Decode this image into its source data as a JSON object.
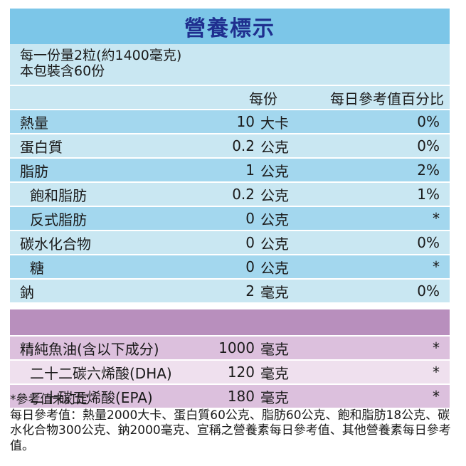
{
  "title": "營養標示",
  "serving": {
    "line1": "每一份量2粒(約1400毫克)",
    "line2": "本包裝含60份"
  },
  "headers": {
    "per_serving": "每份",
    "daily_value": "每日參考值百分比"
  },
  "nutrients": [
    {
      "name": "熱量",
      "amount": "10",
      "unit": "大卡",
      "dv": "0%"
    },
    {
      "name": "蛋白質",
      "amount": "0.2",
      "unit": "公克",
      "dv": "0%"
    },
    {
      "name": "脂肪",
      "amount": "1",
      "unit": "公克",
      "dv": "2%"
    },
    {
      "name": "飽和脂肪",
      "amount": "0.2",
      "unit": "公克",
      "dv": "1%"
    },
    {
      "name": "反式脂肪",
      "amount": "0",
      "unit": "公克",
      "dv": "*"
    },
    {
      "name": "碳水化合物",
      "amount": "0",
      "unit": "公克",
      "dv": "0%"
    },
    {
      "name": "糖",
      "amount": "0",
      "unit": "公克",
      "dv": "*"
    },
    {
      "name": "鈉",
      "amount": "2",
      "unit": "毫克",
      "dv": "0%"
    }
  ],
  "ingredients": [
    {
      "name": "精純魚油(含以下成分)",
      "amount": "1000",
      "unit": "毫克",
      "dv": "*"
    },
    {
      "name": "二十二碳六烯酸(DHA)",
      "amount": "120",
      "unit": "毫克",
      "dv": "*"
    },
    {
      "name": "二十碳五烯酸(EPA)",
      "amount": "180",
      "unit": "毫克",
      "dv": "*"
    }
  ],
  "notes": {
    "line1": "*參考值未訂定",
    "line2": "每日參考值：熱量2000大卡、蛋白質60公克、脂肪60公克、飽和脂肪18公克、碳水化合物300公克、鈉2000毫克、宣稱之營養素每日參考值、其他營養素每日參考值。"
  },
  "colors": {
    "title_bg": "#7cc6e8",
    "title_text": "#1f2f8f",
    "row_blue_dark": "#a3d7ee",
    "row_blue_light": "#c9e7f2",
    "separator_purple": "#b88fbd",
    "row_purple_dark": "#dcc0dd",
    "row_purple_light": "#efe0ee"
  }
}
